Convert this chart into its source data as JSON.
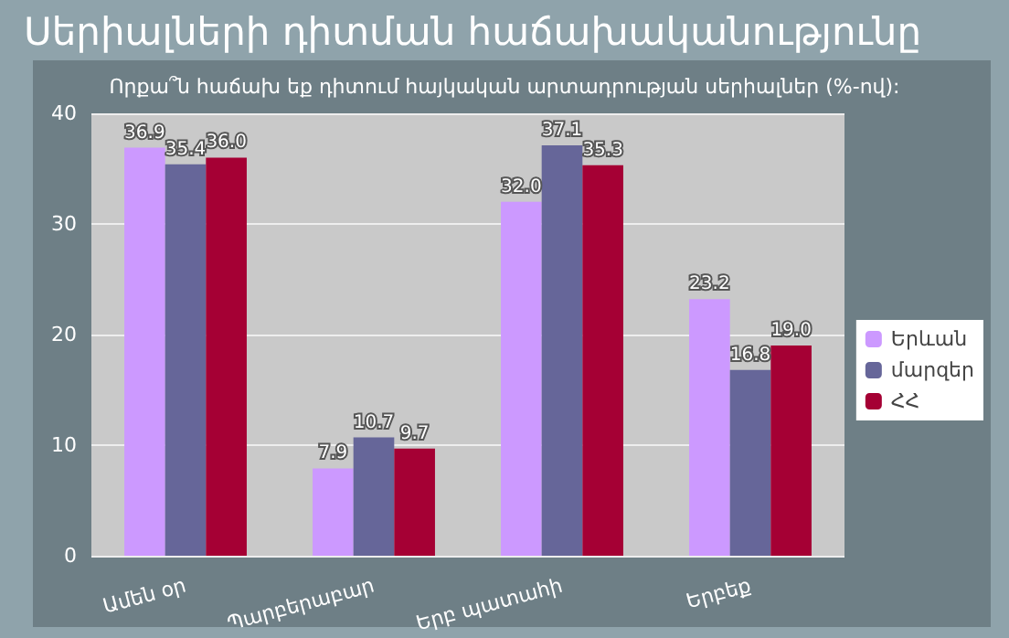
{
  "chart_data": {
    "type": "bar",
    "title": "Սերիալների դիտման հաճախականությունը",
    "subtitle": "Որքա՞ն հաճախ եք դիտում հայկական արտադրության սերիալներ (%-ով):",
    "categories": [
      "Ամեն օր",
      "Պարբերաբար",
      "Երբ պատահի",
      "Երբեք"
    ],
    "series": [
      {
        "name": "Երևան",
        "color": "#cc99ff",
        "values": [
          36.9,
          7.9,
          32.0,
          23.2
        ],
        "value_labels": [
          "36.9",
          "7.9",
          "32.0",
          "23.2"
        ]
      },
      {
        "name": "մարզեր",
        "color": "#666699",
        "values": [
          35.4,
          10.7,
          37.1,
          16.8
        ],
        "value_labels": [
          "35.4",
          "10.7",
          "37.1",
          "16.8"
        ]
      },
      {
        "name": "ՀՀ",
        "color": "#a50034",
        "values": [
          36.0,
          9.7,
          35.3,
          19.0
        ],
        "value_labels": [
          "36.0",
          "9.7",
          "35.3",
          "19.0"
        ]
      }
    ],
    "ylim": [
      0,
      40
    ],
    "yticks": [
      0,
      10,
      20,
      30,
      40
    ],
    "grid": "y",
    "legend": "right"
  }
}
